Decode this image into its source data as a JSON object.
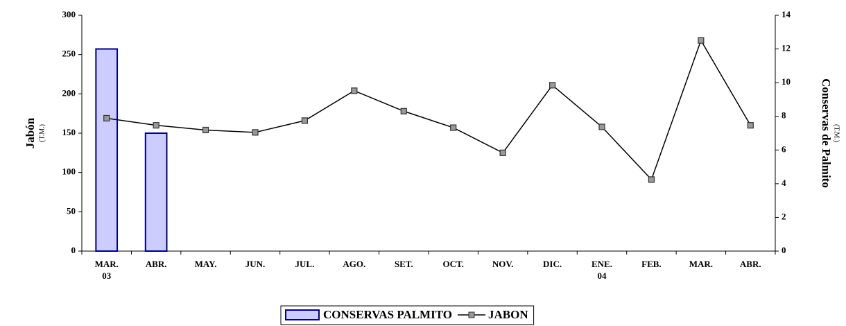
{
  "chart_data": {
    "type": "bar_line",
    "categories": [
      "MAR.\n03",
      "ABR.",
      "MAY.",
      "JUN.",
      "JUL.",
      "AGO.",
      "SET.",
      "OCT.",
      "NOV.",
      "DIC.",
      "ENE.\n04",
      "FEB.",
      "MAR.",
      "ABR."
    ],
    "y_label": "Jabón",
    "y_label_unit": "(T.M.)",
    "y2_label": "Conservas de Palmito",
    "y2_label_unit": "(T.M.)",
    "ylim": [
      0,
      300
    ],
    "yticks": [
      0,
      50,
      100,
      150,
      200,
      250,
      300
    ],
    "y2lim": [
      0,
      14
    ],
    "y2ticks": [
      0,
      2,
      4,
      6,
      8,
      10,
      12,
      14
    ],
    "series": [
      {
        "name": "CONSERVAS PALMITO",
        "type": "bar",
        "axis": "y2",
        "color": "#ccccff",
        "values": [
          12,
          7,
          null,
          null,
          null,
          null,
          null,
          null,
          null,
          null,
          null,
          null,
          null,
          null
        ]
      },
      {
        "name": "JABON",
        "type": "line",
        "axis": "y",
        "color": "#000000",
        "values": [
          169,
          160,
          154,
          151,
          166,
          204,
          178,
          157,
          125,
          211,
          158,
          91,
          268,
          160
        ]
      }
    ]
  }
}
